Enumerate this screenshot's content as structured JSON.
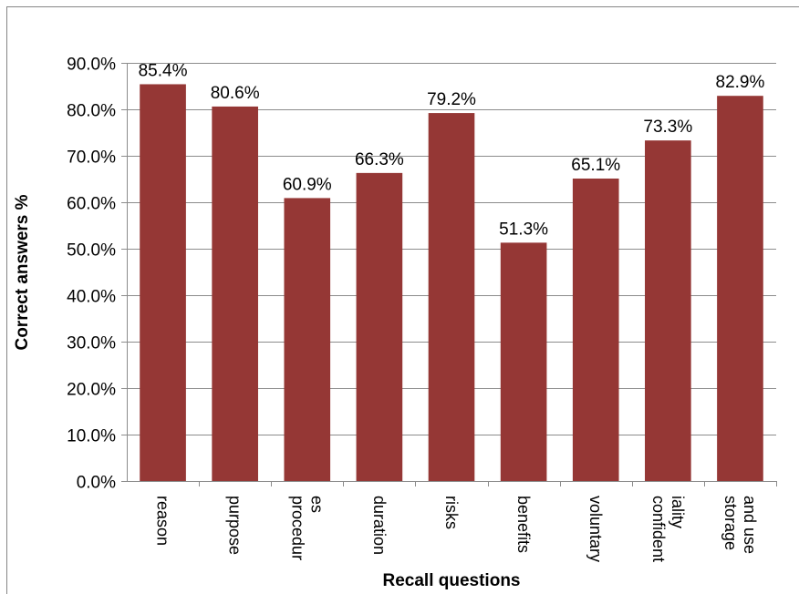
{
  "chart_data": {
    "type": "bar",
    "categories": [
      [
        "reason"
      ],
      [
        "purpose"
      ],
      [
        "procedur",
        "es"
      ],
      [
        "duration"
      ],
      [
        "risks"
      ],
      [
        "benefits"
      ],
      [
        "voluntary"
      ],
      [
        "confident",
        "iality"
      ],
      [
        "storage",
        "and use"
      ]
    ],
    "values": [
      85.4,
      80.6,
      60.9,
      66.3,
      79.2,
      51.3,
      65.1,
      73.3,
      82.9
    ],
    "data_labels": [
      "85.4%",
      "80.6%",
      "60.9%",
      "66.3%",
      "79.2%",
      "51.3%",
      "65.1%",
      "73.3%",
      "82.9%"
    ],
    "title": "",
    "xlabel": "Recall questions",
    "ylabel": "Correct answers %",
    "ylim": [
      0,
      90
    ],
    "yticks": [
      0,
      10,
      20,
      30,
      40,
      50,
      60,
      70,
      80,
      90
    ],
    "ytick_labels": [
      "0.0%",
      "10.0%",
      "20.0%",
      "30.0%",
      "40.0%",
      "50.0%",
      "60.0%",
      "70.0%",
      "80.0%",
      "90.0%"
    ],
    "grid": true,
    "legend": "none",
    "bar_color": "#953735"
  }
}
